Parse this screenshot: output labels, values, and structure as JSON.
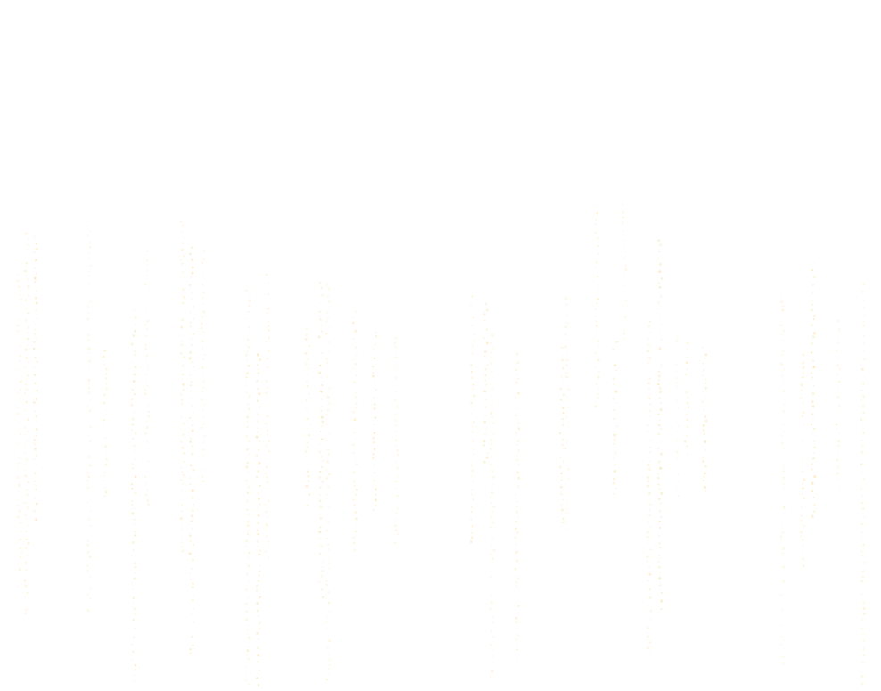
{
  "background": "#ffffff",
  "streak_colors": [
    "#fff3d6",
    "#ffefc7",
    "#fbe8b8"
  ]
}
